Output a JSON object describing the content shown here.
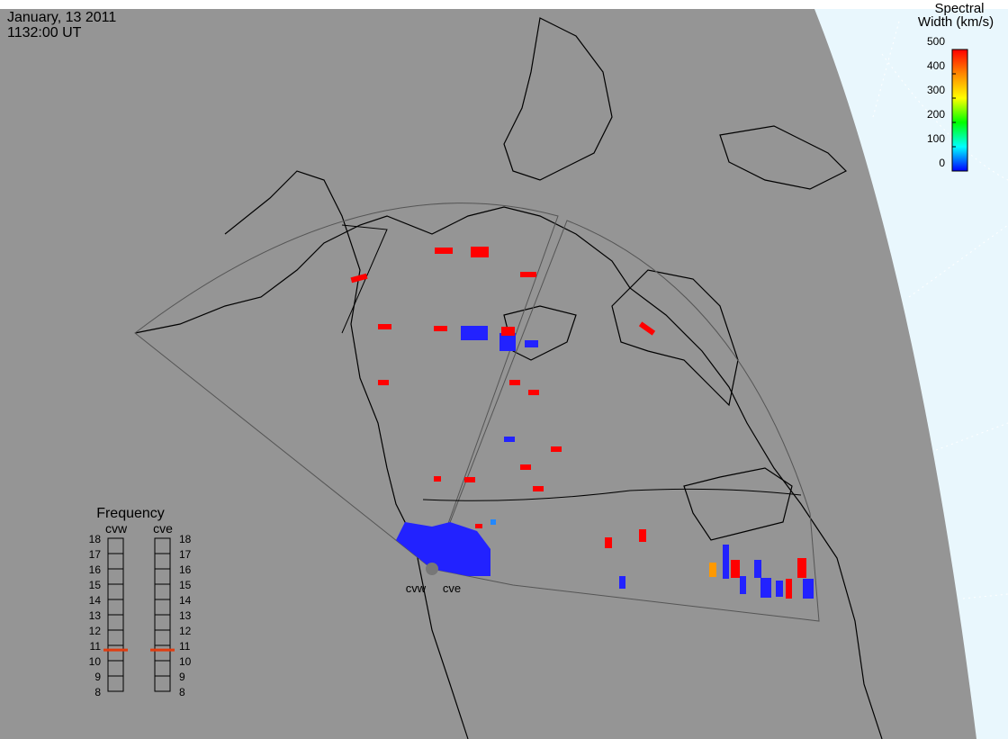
{
  "header": {
    "date": "January, 13 2011",
    "time": "1132:00 UT"
  },
  "colorbar": {
    "title": [
      "Spectral",
      "Width (km/s)"
    ],
    "lim": [
      0,
      500
    ],
    "ticks": [
      0,
      100,
      200,
      300,
      400,
      500
    ]
  },
  "frequency": {
    "title": "Frequency",
    "lim": [
      8,
      18
    ],
    "ticks": [
      8,
      9,
      10,
      11,
      12,
      13,
      14,
      15,
      16,
      17,
      18
    ],
    "radars": [
      {
        "name": "cvw",
        "value": 10.7
      },
      {
        "name": "cve",
        "value": 10.7
      }
    ]
  },
  "sites": [
    "cvw",
    "cve"
  ]
}
